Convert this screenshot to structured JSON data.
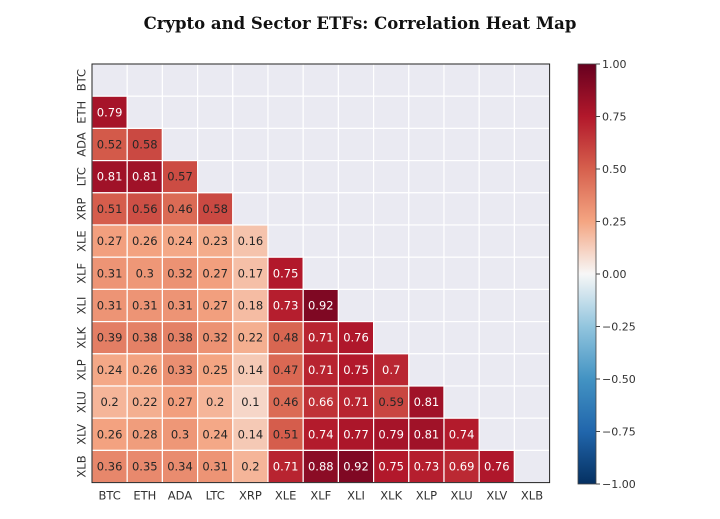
{
  "title": "Crypto and Sector ETFs: Correlation Heat Map",
  "chart_data": {
    "type": "heatmap",
    "title": "Crypto and Sector ETFs: Correlation Heat Map",
    "labels": [
      "BTC",
      "ETH",
      "ADA",
      "LTC",
      "XRP",
      "XLE",
      "XLF",
      "XLI",
      "XLK",
      "XLP",
      "XLU",
      "XLV",
      "XLB"
    ],
    "lower_triangle": [
      [],
      [
        0.79
      ],
      [
        0.52,
        0.58
      ],
      [
        0.81,
        0.81,
        0.57
      ],
      [
        0.51,
        0.56,
        0.46,
        0.58
      ],
      [
        0.27,
        0.26,
        0.24,
        0.23,
        0.16
      ],
      [
        0.31,
        0.3,
        0.32,
        0.27,
        0.17,
        0.75
      ],
      [
        0.31,
        0.31,
        0.31,
        0.27,
        0.18,
        0.73,
        0.92
      ],
      [
        0.39,
        0.38,
        0.38,
        0.32,
        0.22,
        0.48,
        0.71,
        0.76
      ],
      [
        0.24,
        0.26,
        0.33,
        0.25,
        0.14,
        0.47,
        0.71,
        0.75,
        0.7
      ],
      [
        0.2,
        0.22,
        0.27,
        0.2,
        0.1,
        0.46,
        0.66,
        0.71,
        0.59,
        0.81
      ],
      [
        0.26,
        0.28,
        0.3,
        0.24,
        0.14,
        0.51,
        0.74,
        0.77,
        0.79,
        0.81,
        0.74
      ],
      [
        0.36,
        0.35,
        0.34,
        0.31,
        0.2,
        0.71,
        0.88,
        0.92,
        0.75,
        0.73,
        0.69,
        0.76
      ]
    ],
    "colorbar": {
      "range": [
        -1.0,
        1.0
      ],
      "ticks": [
        "1.00",
        "0.75",
        "0.50",
        "0.25",
        "0.00",
        "−0.25",
        "−0.50",
        "−0.75",
        "−1.00"
      ],
      "colormap": "RdBu_r"
    },
    "masked_color": "#eaeaf2",
    "grid": true
  }
}
